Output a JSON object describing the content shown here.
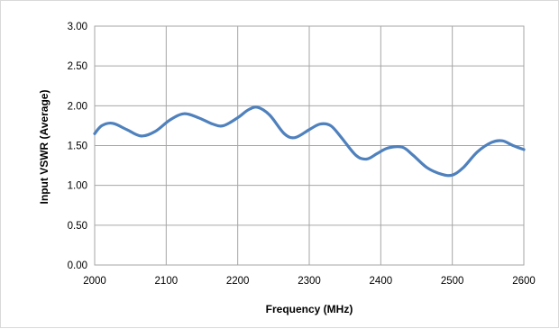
{
  "chart_data": {
    "type": "line",
    "title": "",
    "xlabel": "Frequency (MHz)",
    "ylabel": "Input VSWR (Average)",
    "xlim": [
      2000,
      2600
    ],
    "ylim": [
      0,
      3
    ],
    "x_ticks": [
      "2000",
      "2100",
      "2200",
      "2300",
      "2400",
      "2500",
      "2600"
    ],
    "y_ticks": [
      "0.00",
      "0.50",
      "1.00",
      "1.50",
      "2.00",
      "2.50",
      "3.00"
    ],
    "grid": true,
    "legend": "none",
    "line_color": "#4f81bd",
    "series": [
      {
        "x": [
          2000,
          2010,
          2025,
          2045,
          2065,
          2085,
          2105,
          2125,
          2145,
          2165,
          2180,
          2200,
          2215,
          2228,
          2245,
          2265,
          2280,
          2300,
          2315,
          2330,
          2345,
          2365,
          2380,
          2395,
          2410,
          2430,
          2445,
          2465,
          2485,
          2500,
          2515,
          2535,
          2555,
          2570,
          2585,
          2600
        ],
        "y": [
          1.65,
          1.75,
          1.78,
          1.7,
          1.62,
          1.68,
          1.82,
          1.9,
          1.85,
          1.77,
          1.75,
          1.85,
          1.95,
          1.98,
          1.88,
          1.65,
          1.6,
          1.7,
          1.77,
          1.75,
          1.6,
          1.38,
          1.33,
          1.4,
          1.47,
          1.48,
          1.38,
          1.22,
          1.14,
          1.13,
          1.22,
          1.42,
          1.54,
          1.56,
          1.5,
          1.45
        ]
      }
    ]
  }
}
